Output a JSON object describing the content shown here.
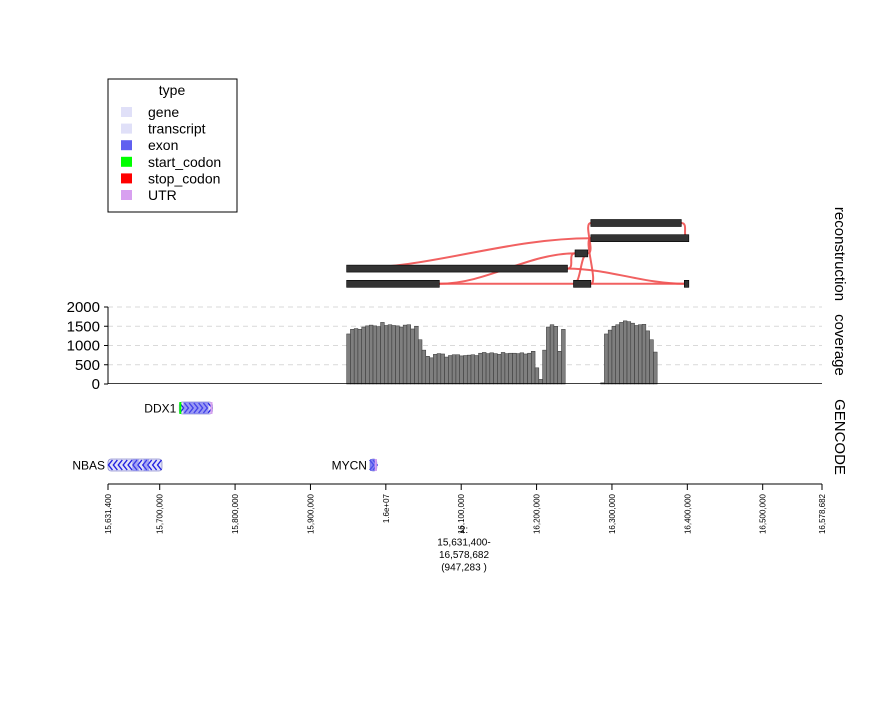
{
  "chart_data": {
    "type": "genome-browser",
    "colors": {
      "gene": "#e0e0f8",
      "transcript": "#e0e0f8",
      "exon": "#6060f0",
      "start_codon": "#00ff00",
      "stop_codon": "#ff0000",
      "UTR": "#d8a0f0",
      "coverage_bar": "#7f7f7f",
      "reconstruction_block": "#333333",
      "reconstruction_link": "#f05050"
    },
    "legend": {
      "title": "type",
      "entries": [
        {
          "label": "gene",
          "key": "gene"
        },
        {
          "label": "transcript",
          "key": "transcript"
        },
        {
          "label": "exon",
          "key": "exon"
        },
        {
          "label": "start_codon",
          "key": "start_codon"
        },
        {
          "label": "stop_codon",
          "key": "stop_codon"
        },
        {
          "label": "UTR",
          "key": "UTR"
        }
      ]
    },
    "tracks": {
      "reconstruction": "reconstruction",
      "coverage": "coverage",
      "gencode": "GENCODE"
    },
    "x_axis": {
      "min": 15631400,
      "max": 16578682,
      "ticks": [
        {
          "value": 15631400,
          "label": "15,631,400"
        },
        {
          "value": 15700000,
          "label": "15,700,000"
        },
        {
          "value": 15800000,
          "label": "15,800,000"
        },
        {
          "value": 15900000,
          "label": "15,900,000"
        },
        {
          "value": 16000000,
          "label": "1.6e+07"
        },
        {
          "value": 16100000,
          "label": "16,100,000"
        },
        {
          "value": 16200000,
          "label": "16,200,000"
        },
        {
          "value": 16300000,
          "label": "16,300,000"
        },
        {
          "value": 16400000,
          "label": "16,400,000"
        },
        {
          "value": 16500000,
          "label": "16,500,000"
        },
        {
          "value": 16578682,
          "label": "16,578,682"
        }
      ],
      "region_lines": [
        "2:",
        "15,631,400-",
        "16,578,682",
        "(947,283 )"
      ]
    },
    "coverage": {
      "y_ticks": [
        {
          "value": 0,
          "label": "0"
        },
        {
          "value": 500,
          "label": "500"
        },
        {
          "value": 1000,
          "label": "1000"
        },
        {
          "value": 1500,
          "label": "1500"
        },
        {
          "value": 2000,
          "label": "2000"
        }
      ],
      "ylim": [
        0,
        2000
      ],
      "bin_width": 5000,
      "bins": [
        {
          "start": 15948000,
          "value": 1300
        },
        {
          "start": 15953000,
          "value": 1420
        },
        {
          "start": 15958000,
          "value": 1440
        },
        {
          "start": 15963000,
          "value": 1420
        },
        {
          "start": 15968000,
          "value": 1480
        },
        {
          "start": 15973000,
          "value": 1510
        },
        {
          "start": 15978000,
          "value": 1530
        },
        {
          "start": 15983000,
          "value": 1510
        },
        {
          "start": 15988000,
          "value": 1490
        },
        {
          "start": 15993000,
          "value": 1600
        },
        {
          "start": 15998000,
          "value": 1520
        },
        {
          "start": 16003000,
          "value": 1540
        },
        {
          "start": 16008000,
          "value": 1520
        },
        {
          "start": 16013000,
          "value": 1510
        },
        {
          "start": 16018000,
          "value": 1480
        },
        {
          "start": 16023000,
          "value": 1530
        },
        {
          "start": 16028000,
          "value": 1540
        },
        {
          "start": 16033000,
          "value": 1430
        },
        {
          "start": 16038000,
          "value": 1500
        },
        {
          "start": 16043000,
          "value": 1150
        },
        {
          "start": 16048000,
          "value": 880
        },
        {
          "start": 16053000,
          "value": 720
        },
        {
          "start": 16058000,
          "value": 680
        },
        {
          "start": 16063000,
          "value": 770
        },
        {
          "start": 16068000,
          "value": 790
        },
        {
          "start": 16073000,
          "value": 780
        },
        {
          "start": 16078000,
          "value": 700
        },
        {
          "start": 16083000,
          "value": 740
        },
        {
          "start": 16088000,
          "value": 760
        },
        {
          "start": 16093000,
          "value": 760
        },
        {
          "start": 16098000,
          "value": 730
        },
        {
          "start": 16103000,
          "value": 740
        },
        {
          "start": 16108000,
          "value": 750
        },
        {
          "start": 16113000,
          "value": 760
        },
        {
          "start": 16118000,
          "value": 740
        },
        {
          "start": 16123000,
          "value": 800
        },
        {
          "start": 16128000,
          "value": 820
        },
        {
          "start": 16133000,
          "value": 790
        },
        {
          "start": 16138000,
          "value": 810
        },
        {
          "start": 16143000,
          "value": 790
        },
        {
          "start": 16148000,
          "value": 770
        },
        {
          "start": 16153000,
          "value": 820
        },
        {
          "start": 16158000,
          "value": 790
        },
        {
          "start": 16163000,
          "value": 800
        },
        {
          "start": 16168000,
          "value": 800
        },
        {
          "start": 16173000,
          "value": 790
        },
        {
          "start": 16178000,
          "value": 810
        },
        {
          "start": 16183000,
          "value": 780
        },
        {
          "start": 16188000,
          "value": 800
        },
        {
          "start": 16193000,
          "value": 850
        },
        {
          "start": 16198000,
          "value": 420
        },
        {
          "start": 16203000,
          "value": 120
        },
        {
          "start": 16208000,
          "value": 880
        },
        {
          "start": 16213000,
          "value": 1480
        },
        {
          "start": 16218000,
          "value": 1540
        },
        {
          "start": 16223000,
          "value": 1500
        },
        {
          "start": 16228000,
          "value": 850
        },
        {
          "start": 16233000,
          "value": 1420
        },
        {
          "start": 16285000,
          "value": 30
        },
        {
          "start": 16290000,
          "value": 1300
        },
        {
          "start": 16295000,
          "value": 1400
        },
        {
          "start": 16300000,
          "value": 1500
        },
        {
          "start": 16305000,
          "value": 1540
        },
        {
          "start": 16310000,
          "value": 1600
        },
        {
          "start": 16315000,
          "value": 1640
        },
        {
          "start": 16320000,
          "value": 1620
        },
        {
          "start": 16325000,
          "value": 1580
        },
        {
          "start": 16330000,
          "value": 1520
        },
        {
          "start": 16335000,
          "value": 1540
        },
        {
          "start": 16340000,
          "value": 1550
        },
        {
          "start": 16345000,
          "value": 1380
        },
        {
          "start": 16350000,
          "value": 1150
        },
        {
          "start": 16355000,
          "value": 830
        }
      ]
    },
    "reconstruction": {
      "blocks": [
        {
          "row": 0,
          "start": 16272000,
          "end": 16392000
        },
        {
          "row": 1,
          "start": 16272000,
          "end": 16402000
        },
        {
          "row": 2,
          "start": 16251000,
          "end": 16268000
        },
        {
          "row": 3,
          "start": 15948000,
          "end": 16241000
        },
        {
          "row": 4,
          "start": 15948000,
          "end": 16071000
        },
        {
          "row": 4,
          "start": 16249000,
          "end": 16272000
        },
        {
          "row": 4,
          "start": 16396000,
          "end": 16402000
        }
      ],
      "links": [
        {
          "x1": 16241000,
          "r1": 3,
          "x2": 16251000,
          "r2": 2
        },
        {
          "x1": 16071000,
          "r1": 4,
          "x2": 16251000,
          "r2": 2
        },
        {
          "x1": 15948000,
          "r1": 3,
          "x2": 16272000,
          "r2": 1
        },
        {
          "x1": 16241000,
          "r1": 3,
          "x2": 16396000,
          "r2": 4
        },
        {
          "x1": 15948000,
          "r1": 4,
          "x2": 16396000,
          "r2": 4
        },
        {
          "x1": 16268000,
          "r1": 2,
          "x2": 16272000,
          "r2": 0
        },
        {
          "x1": 16268000,
          "r1": 2,
          "x2": 16249000,
          "r2": 4
        },
        {
          "x1": 16392000,
          "r1": 0,
          "x2": 16402000,
          "r2": 1
        },
        {
          "x1": 16272000,
          "r1": 4,
          "x2": 16272000,
          "r2": 1
        }
      ]
    },
    "genes": [
      {
        "name": "DDX1",
        "start": 15726000,
        "end": 15770000,
        "row": 0,
        "strand": "+"
      },
      {
        "name": "NBAS",
        "start": 15631400,
        "end": 15703000,
        "row": 1,
        "strand": "-"
      },
      {
        "name": "MYCN",
        "start": 15979000,
        "end": 15988000,
        "row": 1,
        "strand": "+"
      }
    ]
  }
}
